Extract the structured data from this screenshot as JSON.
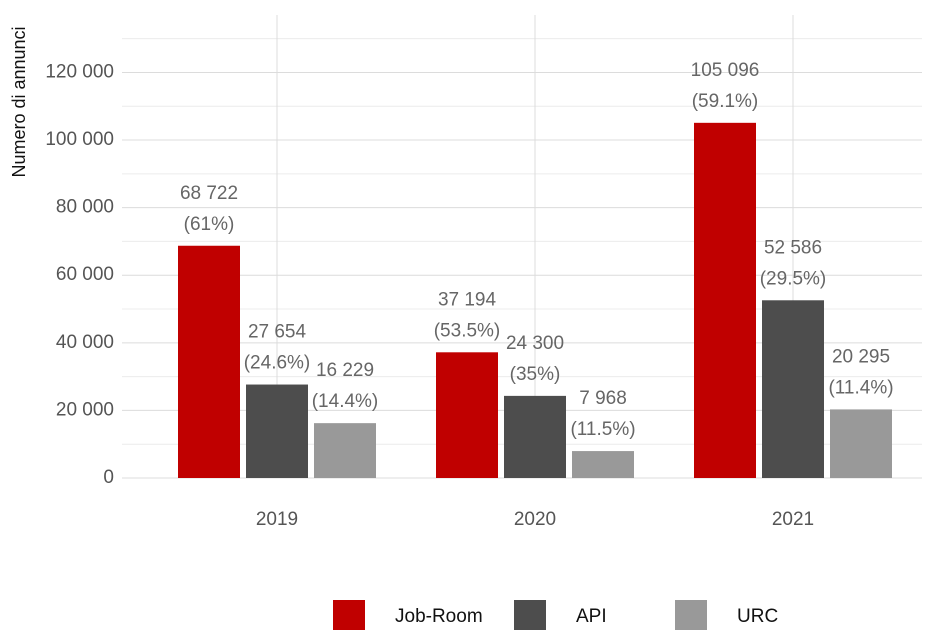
{
  "chart_data": {
    "type": "bar",
    "y_axis_label": "Numero di annunci",
    "categories": [
      "2019",
      "2020",
      "2021"
    ],
    "series": [
      {
        "name": "Job-Room",
        "color": "#c00000",
        "values": [
          68722,
          37194,
          105096
        ],
        "value_labels": [
          "68 722",
          "37 194",
          "105 096"
        ],
        "percent_labels": [
          "(61%)",
          "(53.5%)",
          "(59.1%)"
        ]
      },
      {
        "name": "API",
        "color": "#4d4d4d",
        "values": [
          27654,
          24300,
          52586
        ],
        "value_labels": [
          "27 654",
          "24 300",
          "52 586"
        ],
        "percent_labels": [
          "(24.6%)",
          "(35%)",
          "(29.5%)"
        ]
      },
      {
        "name": "URC",
        "color": "#999999",
        "values": [
          16229,
          7968,
          20295
        ],
        "value_labels": [
          "16 229",
          "7 968",
          "20 295"
        ],
        "percent_labels": [
          "(14.4%)",
          "(11.5%)",
          "(11.4%)"
        ]
      }
    ],
    "ylim": [
      0,
      137000
    ],
    "yticks": [
      0,
      {
        "value": 20000,
        "label": "20 000"
      },
      {
        "value": 40000,
        "label": "40 000"
      },
      {
        "value": 60000,
        "label": "60 000"
      },
      {
        "value": 80000,
        "label": "80 000"
      },
      {
        "value": 100000,
        "label": "100 000"
      },
      {
        "value": 120000,
        "label": "120 000"
      }
    ],
    "minor_yticks": [
      10000,
      30000,
      50000,
      70000,
      90000,
      110000,
      130000
    ],
    "grid": true,
    "legend": "bottom"
  }
}
